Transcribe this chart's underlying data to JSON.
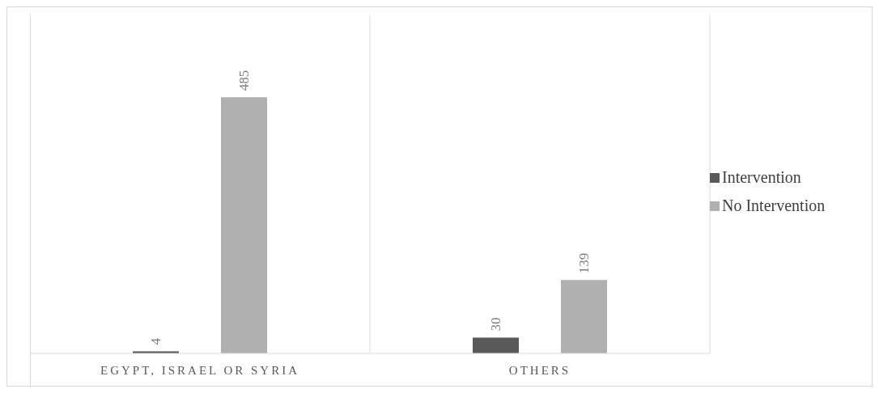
{
  "chart_data": {
    "type": "bar",
    "categories": [
      "EGYPT, ISRAEL OR SYRIA",
      "OTHERS"
    ],
    "series": [
      {
        "name": "Intervention",
        "color": "#595959",
        "values": [
          4,
          30
        ]
      },
      {
        "name": "No Intervention",
        "color": "#b0b0b0",
        "values": [
          485,
          139
        ]
      }
    ],
    "data_labels": true,
    "grid": "x",
    "legend": "right"
  }
}
